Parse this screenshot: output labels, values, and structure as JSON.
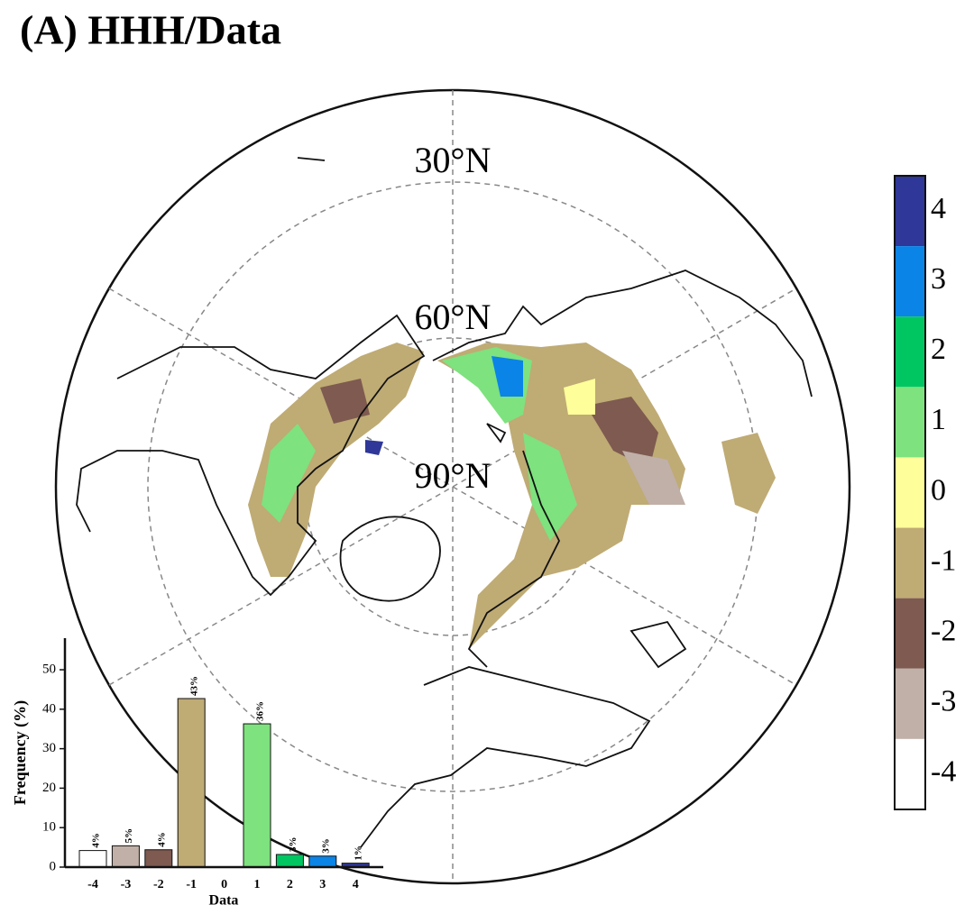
{
  "title": "(A) HHH/Data",
  "map": {
    "lat_labels": [
      "30°N",
      "60°N",
      "90°N"
    ]
  },
  "colorbar": {
    "ticks": [
      4,
      3,
      2,
      1,
      0,
      -1,
      -2,
      -3,
      -4
    ],
    "colors": [
      "#2f3798",
      "#0a84e6",
      "#00c661",
      "#7ee27e",
      "#fefe9a",
      "#bfab74",
      "#7e5a50",
      "#c0b0a8",
      "#ffffff"
    ]
  },
  "chart_data": {
    "type": "bar",
    "categories": [
      "-4",
      "-3",
      "-2",
      "-1",
      "0",
      "1",
      "2",
      "3",
      "4"
    ],
    "values": [
      4.2,
      5.4,
      4.4,
      42.7,
      0,
      36.3,
      3.2,
      2.8,
      1
    ],
    "value_labels": [
      "4%",
      "5%",
      "4%",
      "43%",
      null,
      "36%",
      "3%",
      "3%",
      "1%"
    ],
    "colors": [
      "#ffffff",
      "#c0b0a8",
      "#7e5a50",
      "#bfab74",
      "#fefe9a",
      "#7ee27e",
      "#00c661",
      "#0a84e6",
      "#2f3798"
    ],
    "ylim": [
      0,
      58
    ],
    "yticks": [
      0,
      10,
      20,
      30,
      40,
      50
    ],
    "ylabel": "Frequency (%)",
    "xlabel": "Data"
  }
}
